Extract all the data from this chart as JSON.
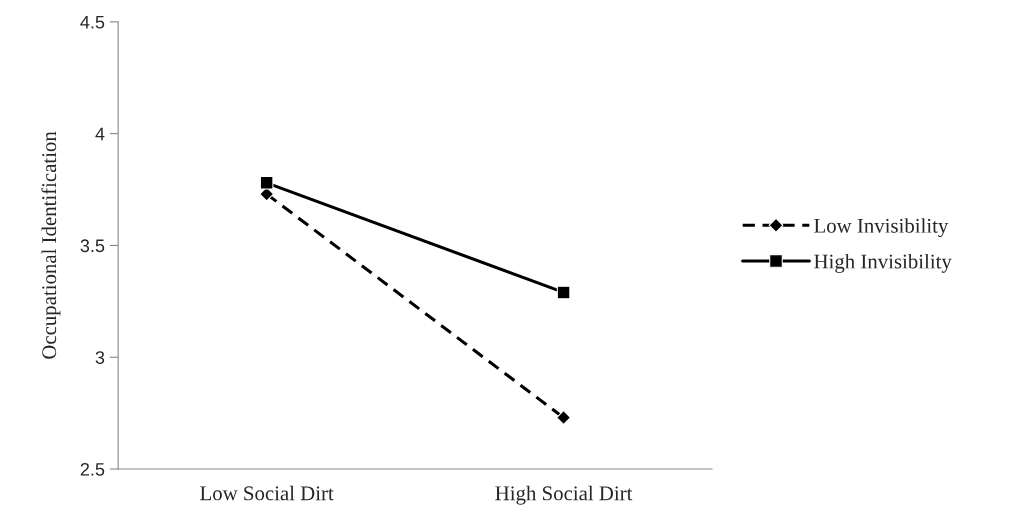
{
  "chart_data": {
    "type": "line",
    "ylabel": "Occupational Identification",
    "categories": [
      "Low Social Dirt",
      "High Social Dirt"
    ],
    "series": [
      {
        "name": "Low Invisibility",
        "color": "#000000",
        "values": [
          3.73,
          2.73
        ],
        "marker": "diamond",
        "line_style": "dashed"
      },
      {
        "name": "High Invisibility",
        "color": "#000000",
        "values": [
          3.78,
          3.29
        ],
        "marker": "square",
        "line_style": "solid"
      }
    ],
    "ylim": [
      2.5,
      4.5
    ],
    "yticks": [
      2.5,
      3,
      3.5,
      4,
      4.5
    ],
    "grid": false,
    "legend": "right"
  }
}
